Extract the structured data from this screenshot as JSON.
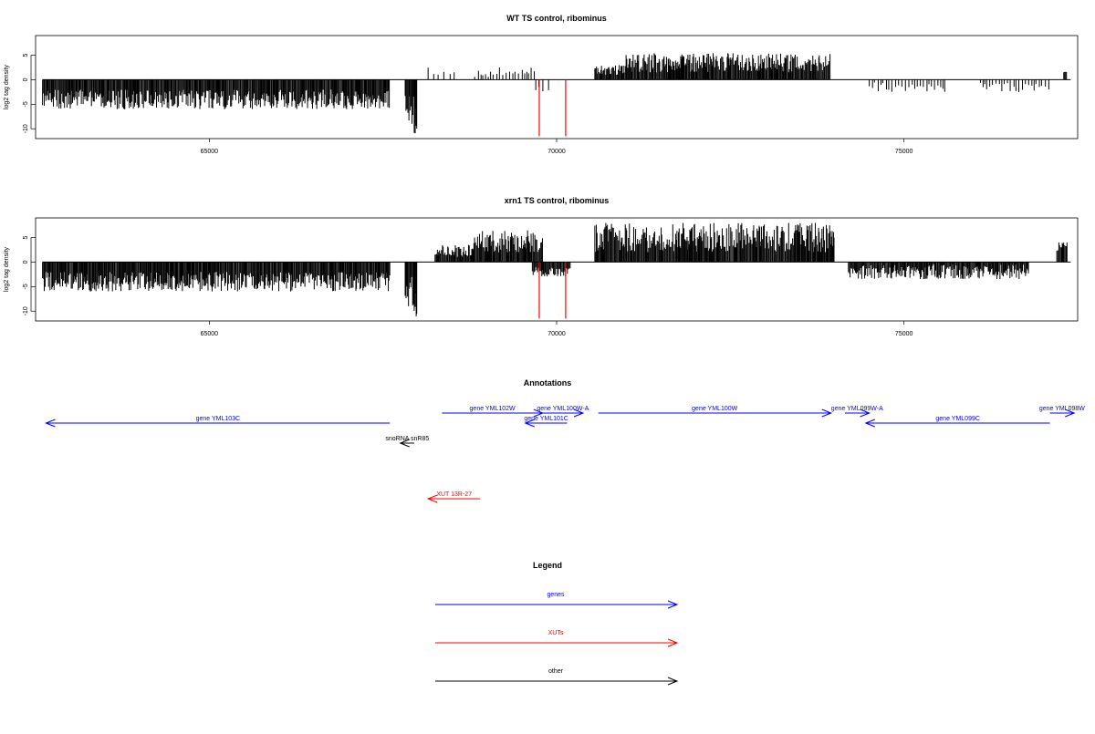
{
  "chart_data": [
    {
      "type": "bar",
      "title": "WT TS control, ribominus",
      "ylabel": "log2 tag density",
      "xlabel": "",
      "xlim": [
        62500,
        77500
      ],
      "ylim": [
        -12,
        9
      ],
      "x_ticks": [
        65000,
        70000,
        75000
      ],
      "x_tick_labels": [
        "65000",
        "70000",
        "75000"
      ],
      "y_ticks": [
        -10,
        -5,
        0,
        5
      ],
      "y_tick_labels": [
        "-10",
        "-5",
        "0",
        "5"
      ],
      "baseline": {
        "from": 62600,
        "to": 77400,
        "y": 0
      },
      "bar_color": "#000000",
      "marker_color": "#ff0000",
      "markers": [
        {
          "x": 69750,
          "y": -11.5
        },
        {
          "x": 70130,
          "y": -11.5
        }
      ],
      "segments": [
        {
          "from": 62600,
          "to": 67600,
          "min": -6,
          "max": -2,
          "sign": -1
        },
        {
          "from": 67820,
          "to": 67980,
          "min": -9,
          "max": -3,
          "sign": -1
        },
        {
          "from": 67950,
          "to": 67990,
          "min": -11,
          "max": -9,
          "sign": -1
        },
        {
          "from": 68150,
          "to": 68550,
          "min": 1,
          "max": 3,
          "sign": 1,
          "step": 80
        },
        {
          "from": 68820,
          "to": 69700,
          "min": 0.5,
          "max": 2.5,
          "sign": 1,
          "step": 40
        },
        {
          "from": 69700,
          "to": 69900,
          "min": -2.5,
          "max": -1,
          "sign": -1,
          "step": 60
        },
        {
          "from": 70550,
          "to": 71000,
          "min": 1,
          "max": 3,
          "sign": 1
        },
        {
          "from": 71000,
          "to": 73950,
          "min": 1.5,
          "max": 5.5,
          "sign": 1
        },
        {
          "from": 74500,
          "to": 75600,
          "min": -2.5,
          "max": -0.5,
          "sign": -1,
          "step": 40
        },
        {
          "from": 76100,
          "to": 77100,
          "min": -2.5,
          "max": -0.5,
          "sign": -1,
          "step": 40
        },
        {
          "from": 77300,
          "to": 77340,
          "min": 1.5,
          "max": 1.8,
          "sign": 1
        }
      ]
    },
    {
      "type": "bar",
      "title": "xrn1 TS control, ribominus",
      "ylabel": "log2 tag density",
      "xlabel": "",
      "xlim": [
        62500,
        77500
      ],
      "ylim": [
        -12,
        9
      ],
      "x_ticks": [
        65000,
        70000,
        75000
      ],
      "x_tick_labels": [
        "65000",
        "70000",
        "75000"
      ],
      "y_ticks": [
        -10,
        -5,
        0,
        5
      ],
      "y_tick_labels": [
        "-10",
        "-5",
        "0",
        "5"
      ],
      "baseline": {
        "from": 62600,
        "to": 77400,
        "y": 0
      },
      "bar_color": "#000000",
      "marker_color": "#ff0000",
      "markers": [
        {
          "x": 69750,
          "y": -11.5
        },
        {
          "x": 70130,
          "y": -11.5
        }
      ],
      "segments": [
        {
          "from": 62600,
          "to": 67600,
          "min": -6,
          "max": -2,
          "sign": -1
        },
        {
          "from": 67820,
          "to": 67980,
          "min": -9,
          "max": -3,
          "sign": -1
        },
        {
          "from": 67950,
          "to": 67990,
          "min": -11.5,
          "max": -9,
          "sign": -1
        },
        {
          "from": 68250,
          "to": 68800,
          "min": 1,
          "max": 3.5,
          "sign": 1
        },
        {
          "from": 68800,
          "to": 69800,
          "min": 2,
          "max": 6.5,
          "sign": 1
        },
        {
          "from": 69650,
          "to": 70200,
          "min": -3,
          "max": -1,
          "sign": -1
        },
        {
          "from": 70550,
          "to": 74000,
          "min": 2,
          "max": 8,
          "sign": 1
        },
        {
          "from": 74200,
          "to": 76800,
          "min": -3.5,
          "max": -0.5,
          "sign": -1
        },
        {
          "from": 77200,
          "to": 77350,
          "min": 2,
          "max": 4,
          "sign": 1
        }
      ]
    }
  ],
  "annotations": {
    "title": "Annotations",
    "xlim": [
      62500,
      77500
    ],
    "genes_color": "#0000ff",
    "xut_color": "#ff0000",
    "other_color": "#000000",
    "features": [
      {
        "label": "gene YML103C",
        "from": 67600,
        "to": 62650,
        "row": 2,
        "category": "gene"
      },
      {
        "label": "gene YML102W",
        "from": 68350,
        "to": 69800,
        "row": 1,
        "category": "gene"
      },
      {
        "label": "gene YML100W-A",
        "from": 69800,
        "to": 70380,
        "row": 1,
        "category": "gene"
      },
      {
        "label": "gene YML101C",
        "from": 70150,
        "to": 69550,
        "row": 2,
        "category": "gene"
      },
      {
        "label": "gene YML100W",
        "from": 70600,
        "to": 73950,
        "row": 1,
        "category": "gene"
      },
      {
        "label": "gene YML099W-A",
        "from": 74150,
        "to": 74500,
        "row": 1,
        "category": "gene"
      },
      {
        "label": "gene YML099C",
        "from": 77100,
        "to": 74450,
        "row": 2,
        "category": "gene"
      },
      {
        "label": "gene YML098W",
        "from": 77100,
        "to": 77450,
        "row": 1,
        "category": "gene"
      },
      {
        "label": "snoRNA snR85",
        "from": 67950,
        "to": 67750,
        "row": 3,
        "category": "other"
      },
      {
        "label": "XUT 13R-27",
        "from": 68900,
        "to": 68150,
        "row": 4,
        "category": "xut"
      }
    ]
  },
  "legend": {
    "title": "Legend",
    "items": [
      {
        "label": "genes",
        "color": "#0000ff"
      },
      {
        "label": "XUTs",
        "color": "#ff0000"
      },
      {
        "label": "other",
        "color": "#000000"
      }
    ]
  }
}
